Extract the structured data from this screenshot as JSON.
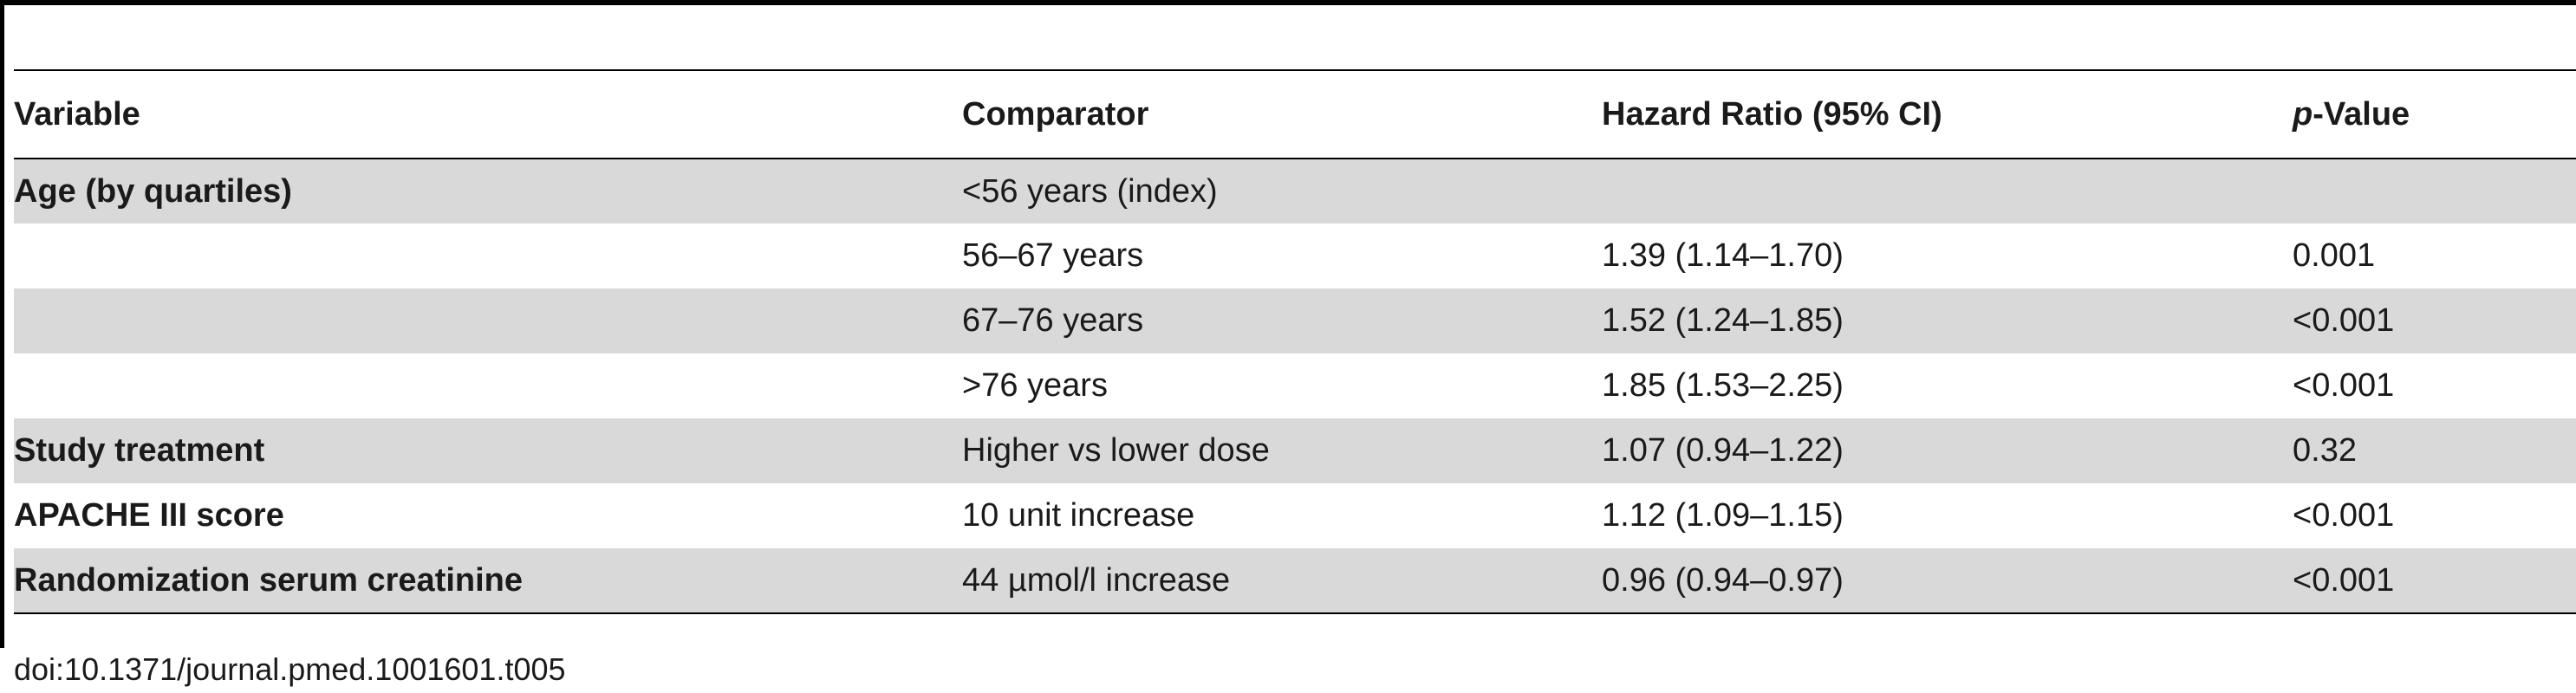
{
  "table": {
    "headers": {
      "variable": "Variable",
      "comparator": "Comparator",
      "hazard_ratio": "Hazard Ratio (95% CI)",
      "p_value_italic": "p",
      "p_value_rest": "-Value"
    },
    "rows": [
      {
        "variable": "Age (by quartiles)",
        "comparator": "<56 years (index)",
        "hazard_ratio": "",
        "p_value": ""
      },
      {
        "variable": "",
        "comparator": "56–67 years",
        "hazard_ratio": "1.39 (1.14–1.70)",
        "p_value": "0.001"
      },
      {
        "variable": "",
        "comparator": "67–76 years",
        "hazard_ratio": "1.52 (1.24–1.85)",
        "p_value": "<0.001"
      },
      {
        "variable": "",
        "comparator": ">76 years",
        "hazard_ratio": "1.85 (1.53–2.25)",
        "p_value": "<0.001"
      },
      {
        "variable": "Study treatment",
        "comparator": "Higher vs lower dose",
        "hazard_ratio": "1.07 (0.94–1.22)",
        "p_value": "0.32"
      },
      {
        "variable": "APACHE III score",
        "comparator": "10 unit increase",
        "hazard_ratio": "1.12 (1.09–1.15)",
        "p_value": "<0.001"
      },
      {
        "variable": "Randomization serum creatinine",
        "comparator": "44 µmol/l increase",
        "hazard_ratio": "0.96 (0.94–0.97)",
        "p_value": "<0.001"
      }
    ]
  },
  "footer": {
    "doi": "doi:10.1371/journal.pmed.1001601.t005"
  },
  "colors": {
    "shaded_row": "#d9d9d9",
    "rule": "#000000",
    "text": "#1a1a1a"
  }
}
